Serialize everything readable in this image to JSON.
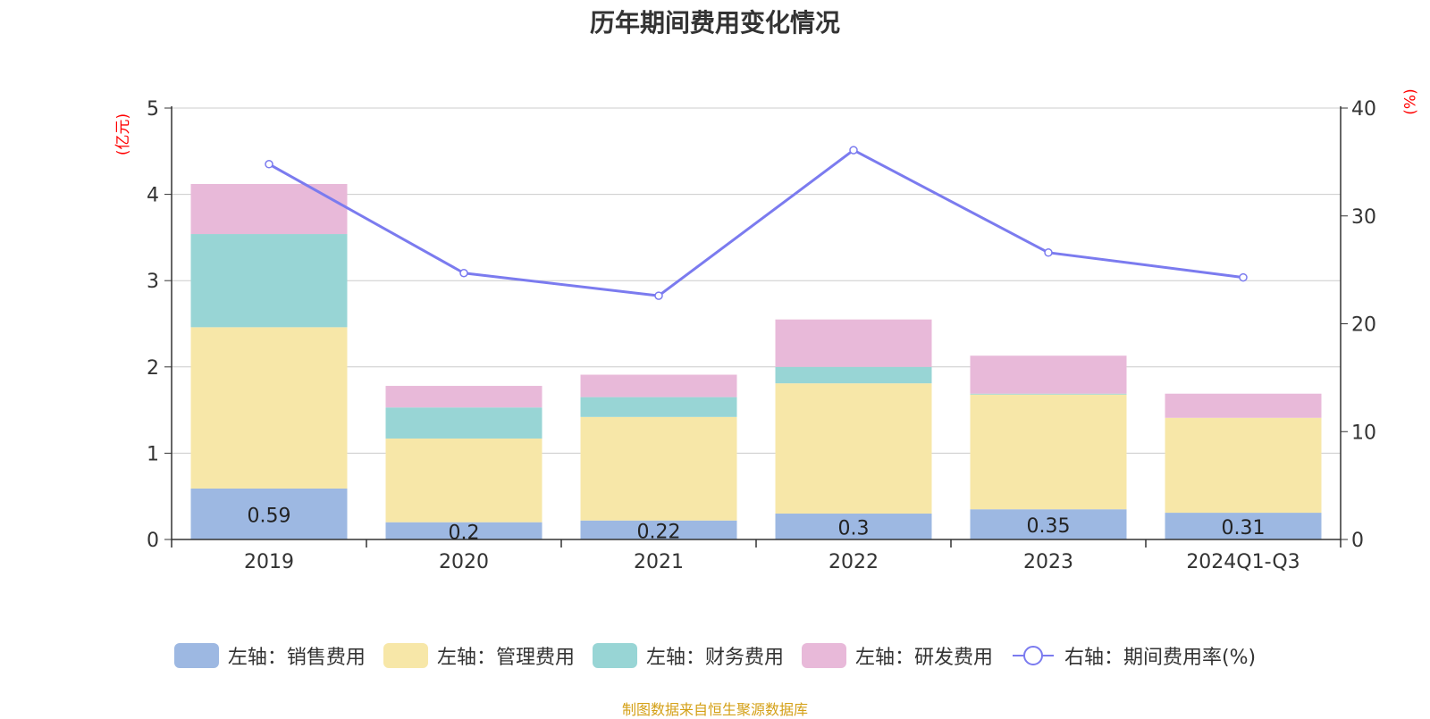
{
  "title": "历年期间费用变化情况",
  "unit_left": "(亿元)",
  "unit_right": "(%)",
  "source": "制图数据来自恒生聚源数据库",
  "colors": {
    "sales": "#9db8e2",
    "admin": "#f7e7a8",
    "finance": "#98d5d5",
    "rd": "#e8b9d9",
    "rate": "#7b7bef",
    "grid": "#cccccc",
    "axis": "#333333"
  },
  "chart_data": {
    "type": "bar",
    "categories": [
      "2019",
      "2020",
      "2021",
      "2022",
      "2023",
      "2024Q1-Q3"
    ],
    "stacked": true,
    "series": [
      {
        "name": "左轴：销售费用",
        "axis": "left",
        "values": [
          0.59,
          0.2,
          0.22,
          0.3,
          0.35,
          0.31
        ],
        "show_labels": true
      },
      {
        "name": "左轴：管理费用",
        "axis": "left",
        "values": [
          1.87,
          0.97,
          1.2,
          1.51,
          1.33,
          1.1
        ]
      },
      {
        "name": "左轴：财务费用",
        "axis": "left",
        "values": [
          1.08,
          0.36,
          0.23,
          0.19,
          0.01,
          0.0
        ]
      },
      {
        "name": "左轴：研发费用",
        "axis": "left",
        "values": [
          0.58,
          0.25,
          0.26,
          0.55,
          0.44,
          0.28
        ]
      },
      {
        "name": "右轴：期间费用率(%)",
        "axis": "right",
        "type": "line",
        "values": [
          34.8,
          24.7,
          22.6,
          36.1,
          26.6,
          24.3
        ]
      }
    ],
    "ylim_left": [
      0,
      5
    ],
    "yticks_left": [
      0,
      1,
      2,
      3,
      4,
      5
    ],
    "ylim_right": [
      0,
      40
    ],
    "yticks_right": [
      0,
      10,
      20,
      30,
      40
    ],
    "grid": true,
    "legend_position": "bottom"
  }
}
